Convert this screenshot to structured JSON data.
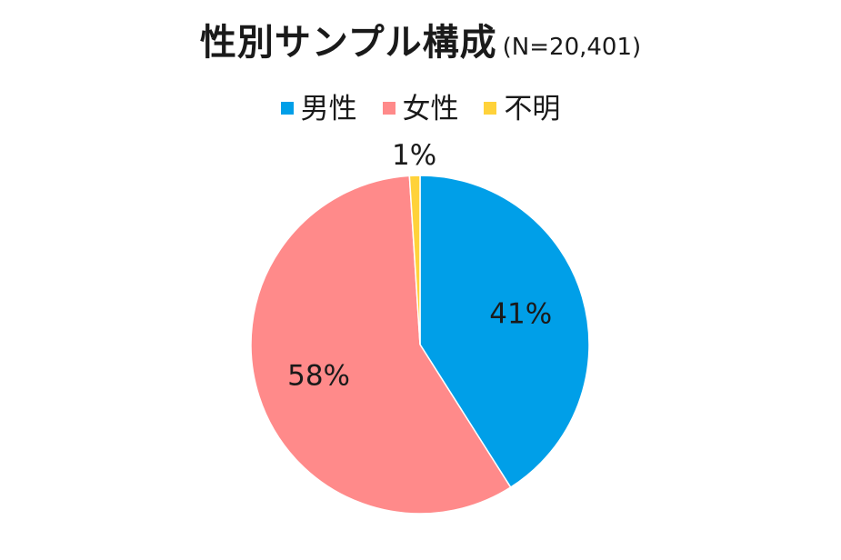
{
  "title": "性別サンプル構成",
  "title_note": "(N=20,401)",
  "colors": {
    "male": "#009fe8",
    "female": "#ff8a8a",
    "unknown": "#ffd23a"
  },
  "chart_data": {
    "type": "pie",
    "title": "性別サンプル構成",
    "note": "(N=20,401)",
    "legend_position": "top",
    "slices": [
      {
        "name": "男性",
        "value": 41,
        "label": "41%",
        "color": "#009fe8"
      },
      {
        "name": "女性",
        "value": 58,
        "label": "58%",
        "color": "#ff8a8a"
      },
      {
        "name": "不明",
        "value": 1,
        "label": "1%",
        "color": "#ffd23a"
      }
    ]
  }
}
